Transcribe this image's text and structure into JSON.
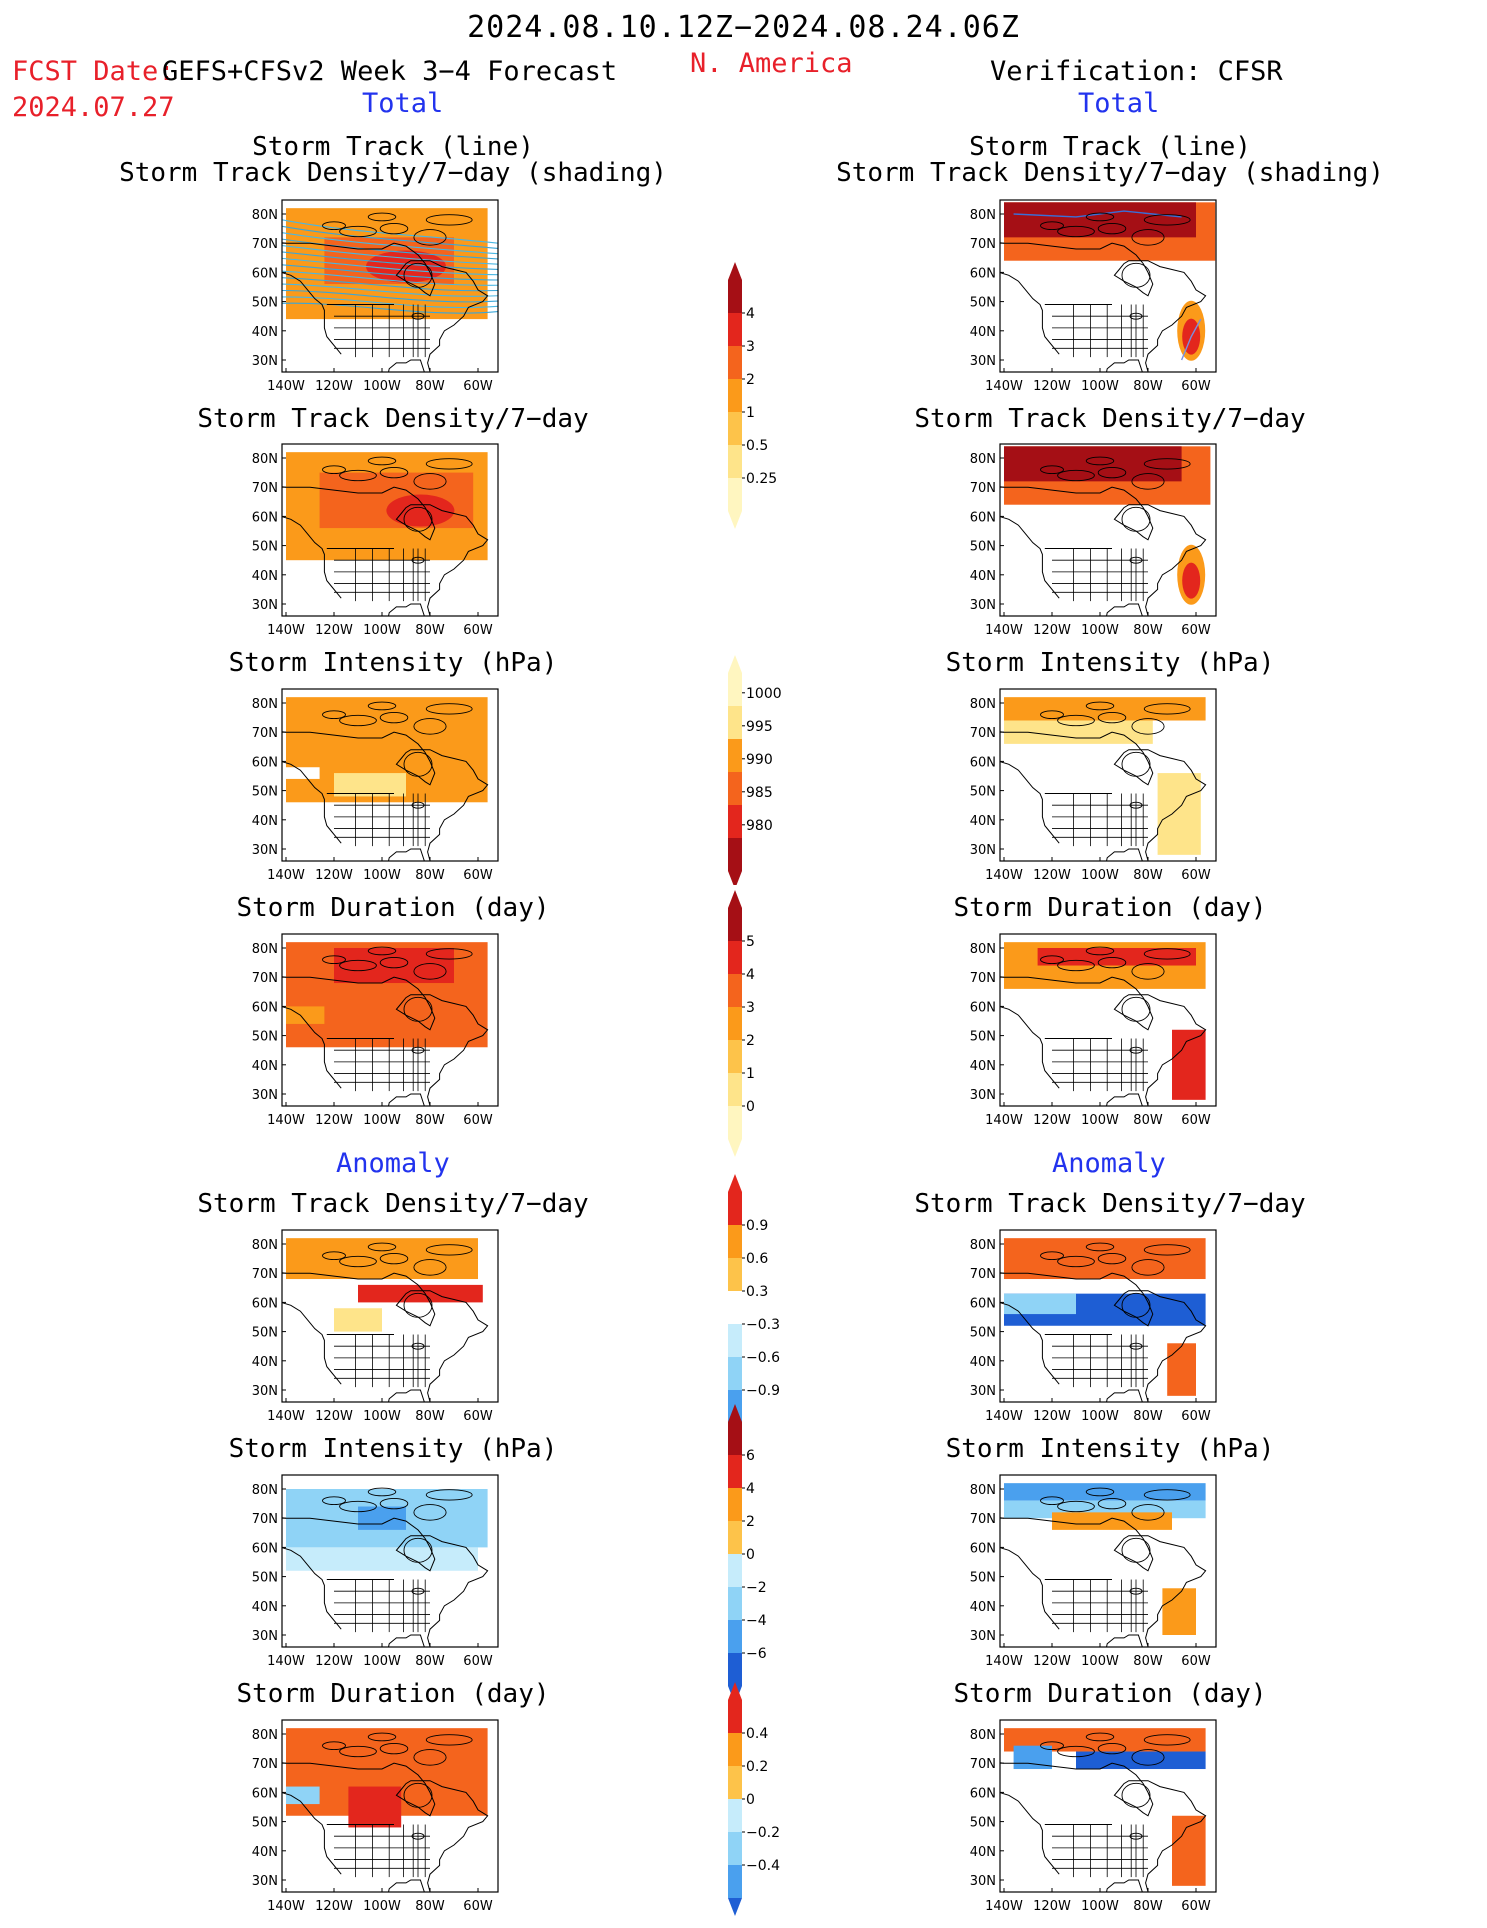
{
  "header": {
    "date_range": "2024.08.10.12Z−2024.08.24.06Z",
    "fcst_label": "FCST Date:",
    "fcst_model": "GEFS+CFSv2 Week 3−4 Forecast",
    "fcst_date": "2024.07.27",
    "region": "N. America",
    "verification": "Verification: CFSR"
  },
  "sections": {
    "total": "Total",
    "anomaly": "Anomaly"
  },
  "titles": {
    "track_line": "Storm Track (line)",
    "track_density_shading": "Storm Track Density/7−day (shading)",
    "track_density": "Storm Track Density/7−day",
    "intensity": "Storm Intensity (hPa)",
    "duration": "Storm Duration (day)"
  },
  "axes": {
    "lat_labels": [
      "80N",
      "70N",
      "60N",
      "50N",
      "40N",
      "30N"
    ],
    "lon_labels": [
      "140W",
      "120W",
      "100W",
      "80W",
      "60W"
    ]
  },
  "colorbars": {
    "density": [
      "4",
      "3",
      "2",
      "1",
      "0.5",
      "0.25"
    ],
    "intensity": [
      "1000",
      "995",
      "990",
      "985",
      "980"
    ],
    "duration": [
      "5",
      "4",
      "3",
      "2",
      "1",
      "0"
    ],
    "density_anom": [
      "0.9",
      "0.6",
      "0.3",
      "−0.3",
      "−0.6",
      "−0.9"
    ],
    "intensity_anom": [
      "6",
      "4",
      "2",
      "0",
      "−2",
      "−4",
      "−6"
    ],
    "duration_anom": [
      "0.4",
      "0.2",
      "0",
      "−0.2",
      "−0.4"
    ]
  },
  "colors": {
    "title_red": "#e8202a",
    "label_blue": "#2233ee",
    "darkred": "#a50f15",
    "red": "#e3261d",
    "orangered": "#f4641d",
    "orange": "#fb9a1a",
    "lightorange": "#fdc34a",
    "yellow": "#fee48a",
    "paleyellow": "#fff6c0",
    "white": "#ffffff",
    "lightblue": "#c6ecfb",
    "skyblue": "#8fd3f6",
    "blue": "#4aa0ee",
    "darkblue": "#1e5ed4"
  }
}
